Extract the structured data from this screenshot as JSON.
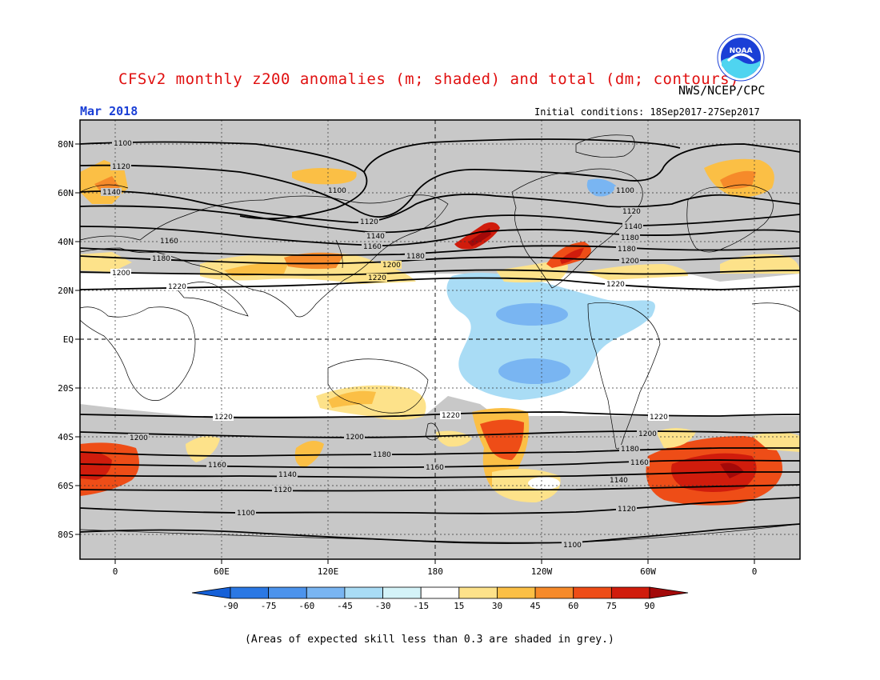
{
  "header": {
    "title": "CFSv2 monthly z200 anomalies (m; shaded) and total (dm; contours)",
    "agency": "NWS/NCEP/CPC",
    "month": "Mar 2018",
    "initial_conditions": "Initial conditions: 18Sep2017-27Sep2017",
    "logo_text": "NOAA"
  },
  "footnote": "(Areas of expected skill less than 0.3 are shaded in grey.)",
  "map": {
    "lat_labels": [
      "80N",
      "60N",
      "40N",
      "20N",
      "EQ",
      "20S",
      "40S",
      "60S",
      "80S"
    ],
    "lon_labels": [
      "0",
      "60E",
      "120E",
      "180",
      "120W",
      "60W",
      "0"
    ],
    "contour_levels": [
      "1100",
      "1120",
      "1140",
      "1160",
      "1180",
      "1200",
      "1220"
    ]
  },
  "colorbar": {
    "ticks": [
      "-90",
      "-75",
      "-60",
      "-45",
      "-30",
      "-15",
      "15",
      "30",
      "45",
      "60",
      "75",
      "90"
    ],
    "colors": [
      "#1560d8",
      "#2b78e4",
      "#4c93ec",
      "#79b5f2",
      "#a9dcf5",
      "#d4f3f8",
      "#ffffff",
      "#fde28a",
      "#fbbf45",
      "#f68a2a",
      "#ee4d17",
      "#d01c0c",
      "#a30909"
    ]
  },
  "colors": {
    "title": "#e01010",
    "month": "#1a3fd6",
    "grey_mask": "#c8c8c8"
  }
}
